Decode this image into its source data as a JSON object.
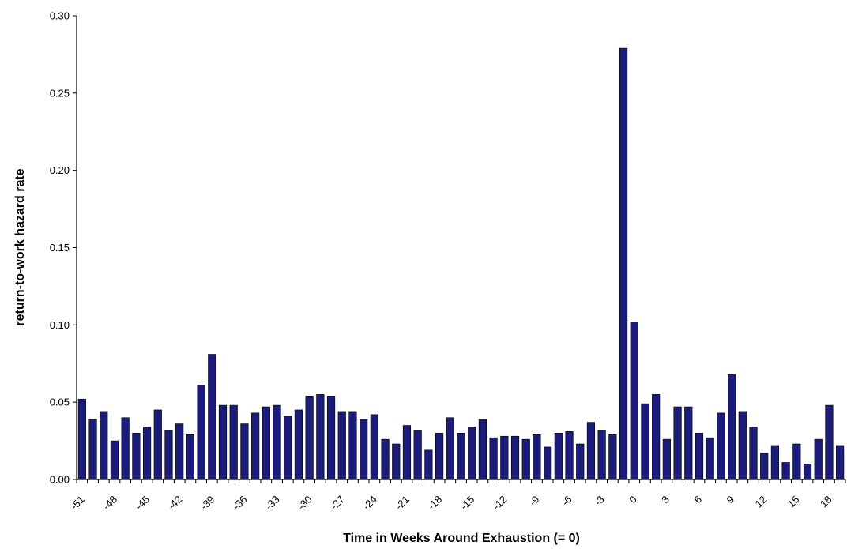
{
  "chart_data": {
    "type": "bar",
    "title": "",
    "xlabel": "Time in Weeks Around Exhaustion (= 0)",
    "ylabel": "return-to-work hazard rate",
    "ylim": [
      0,
      0.3
    ],
    "yticks": [
      "0.00",
      "0.05",
      "0.10",
      "0.15",
      "0.20",
      "0.25",
      "0.30"
    ],
    "xtick_labels": [
      "-51",
      "-48",
      "-45",
      "-42",
      "-39",
      "-36",
      "-33",
      "-30",
      "-27",
      "-24",
      "-21",
      "-18",
      "-15",
      "-12",
      "-9",
      "-6",
      "-3",
      "0",
      "3",
      "6",
      "9",
      "12",
      "15",
      "18"
    ],
    "grid": false,
    "legend": "none",
    "bar_color": "#1b1c7a",
    "x": [
      -51,
      -50,
      -49,
      -48,
      -47,
      -46,
      -45,
      -44,
      -43,
      -42,
      -41,
      -40,
      -39,
      -38,
      -37,
      -36,
      -35,
      -34,
      -33,
      -32,
      -31,
      -30,
      -29,
      -28,
      -27,
      -26,
      -25,
      -24,
      -23,
      -22,
      -21,
      -20,
      -19,
      -18,
      -17,
      -16,
      -15,
      -14,
      -13,
      -12,
      -11,
      -10,
      -9,
      -8,
      -7,
      -6,
      -5,
      -4,
      -3,
      -2,
      -1,
      0,
      1,
      2,
      3,
      4,
      5,
      6,
      7,
      8,
      9,
      10,
      11,
      12,
      13,
      14,
      15,
      16,
      17,
      18,
      19
    ],
    "values": [
      0.052,
      0.039,
      0.044,
      0.025,
      0.04,
      0.03,
      0.034,
      0.045,
      0.032,
      0.036,
      0.029,
      0.061,
      0.081,
      0.048,
      0.048,
      0.036,
      0.043,
      0.047,
      0.048,
      0.041,
      0.045,
      0.054,
      0.055,
      0.054,
      0.044,
      0.044,
      0.039,
      0.042,
      0.026,
      0.023,
      0.035,
      0.032,
      0.019,
      0.03,
      0.04,
      0.03,
      0.034,
      0.039,
      0.027,
      0.028,
      0.028,
      0.026,
      0.029,
      0.021,
      0.03,
      0.031,
      0.023,
      0.037,
      0.032,
      0.029,
      0.279,
      0.102,
      0.049,
      0.055,
      0.026,
      0.047,
      0.047,
      0.03,
      0.027,
      0.043,
      0.068,
      0.044,
      0.034,
      0.017,
      0.022,
      0.011,
      0.023,
      0.01,
      0.026,
      0.048,
      0.022
    ]
  }
}
